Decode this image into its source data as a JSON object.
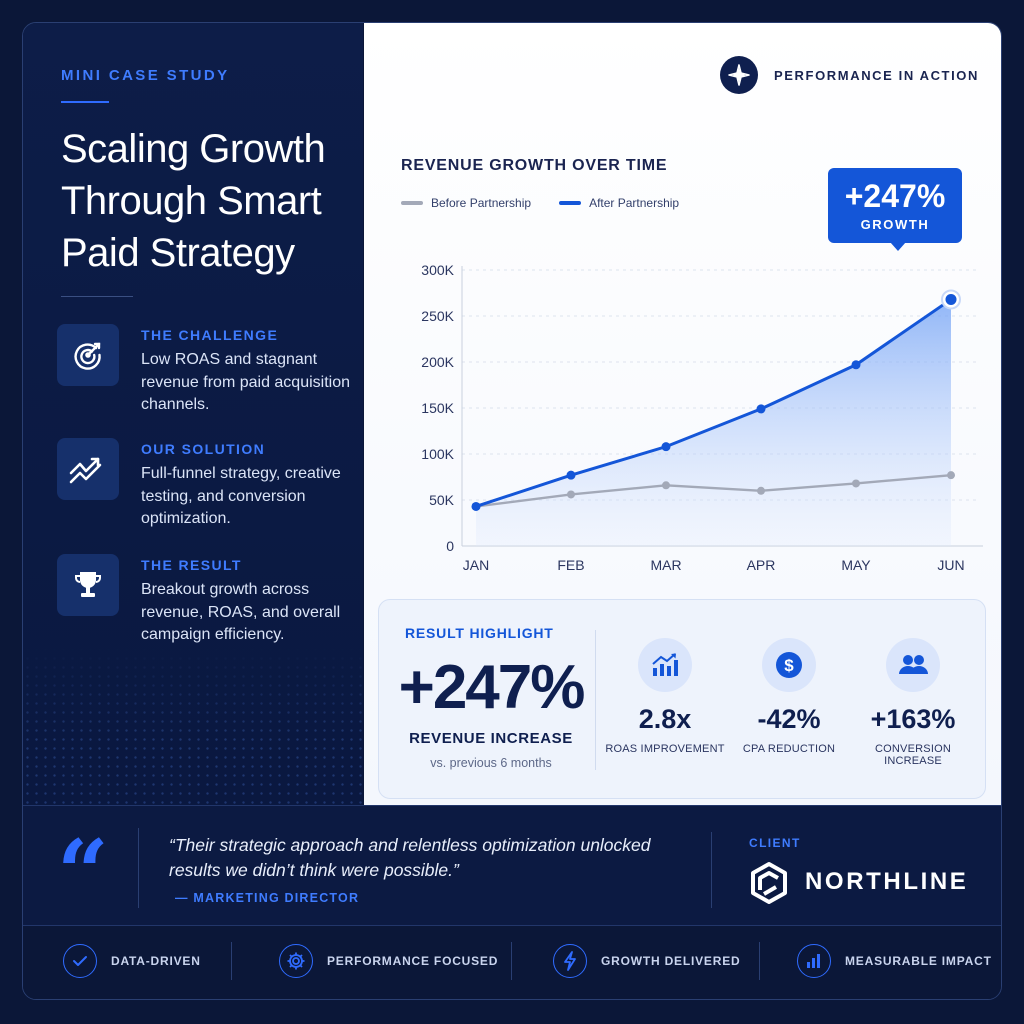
{
  "left": {
    "eyebrow": "MINI CASE STUDY",
    "title": "Scaling Growth Through Smart Paid Strategy",
    "sections": [
      {
        "heading": "THE CHALLENGE",
        "body": "Low ROAS and stagnant revenue from paid acquisition channels.",
        "icon": "target-icon"
      },
      {
        "heading": "OUR SOLUTION",
        "body": "Full-funnel strategy, creative testing, and conversion optimization.",
        "icon": "trend-up-icon"
      },
      {
        "heading": "THE RESULT",
        "body": "Breakout growth across revenue, ROAS, and overall campaign efficiency.",
        "icon": "trophy-icon"
      }
    ]
  },
  "header": {
    "badge_label": "PERFORMANCE IN ACTION",
    "badge_icon": "compass-star-icon"
  },
  "chart_data": {
    "type": "line",
    "title": "REVENUE GROWTH OVER TIME",
    "categories": [
      "JAN",
      "FEB",
      "MAR",
      "APR",
      "MAY",
      "JUN"
    ],
    "series": [
      {
        "name": "Before Partnership",
        "color": "#a3a9b8",
        "values": [
          43000,
          56000,
          66000,
          60000,
          68000,
          77000
        ]
      },
      {
        "name": "After Partnership",
        "color": "#1456d8",
        "values": [
          43000,
          77000,
          108000,
          149000,
          197000,
          268000
        ]
      }
    ],
    "y_ticks": [
      "0",
      "50K",
      "100K",
      "150K",
      "200K",
      "250K",
      "300K"
    ],
    "ylim": [
      0,
      300000
    ],
    "grid": true,
    "callout": {
      "value": "+247%",
      "label": "GROWTH"
    }
  },
  "result": {
    "label": "RESULT HIGHLIGHT",
    "value": "+247%",
    "sub": "REVENUE INCREASE",
    "note": "vs. previous 6 months",
    "metrics": [
      {
        "value": "2.8x",
        "label": "ROAS IMPROVEMENT",
        "icon": "bar-chart-icon"
      },
      {
        "value": "-42%",
        "label": "CPA REDUCTION",
        "icon": "dollar-icon"
      },
      {
        "value": "+163%",
        "label": "CONVERSION INCREASE",
        "icon": "users-icon"
      }
    ]
  },
  "testimonial": {
    "quote": "“Their strategic approach and relentless optimization unlocked results we didn’t think were possible.”",
    "author": "— MARKETING DIRECTOR",
    "client_label": "CLIENT",
    "client_name": "NORTHLINE"
  },
  "pillars": [
    {
      "label": "DATA-DRIVEN",
      "icon": "check-circle-icon"
    },
    {
      "label": "PERFORMANCE FOCUSED",
      "icon": "gear-icon"
    },
    {
      "label": "GROWTH DELIVERED",
      "icon": "lightning-icon"
    },
    {
      "label": "MEASURABLE IMPACT",
      "icon": "bar-chart-icon"
    }
  ],
  "colors": {
    "accent": "#2f6bff",
    "brand_blue": "#1456d8",
    "navy": "#0b1738",
    "before_line": "#a3a9b8"
  }
}
